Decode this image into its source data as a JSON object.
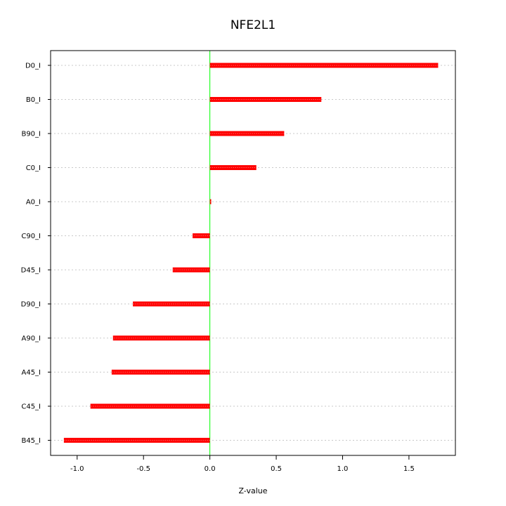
{
  "chart_data": {
    "type": "bar",
    "orientation": "horizontal",
    "title": "NFE2L1",
    "xlabel": "Z-value",
    "ylabel": "",
    "xlim": [
      -1.2,
      1.85
    ],
    "xticks": [
      -1.0,
      -0.5,
      0.0,
      0.5,
      1.0,
      1.5
    ],
    "xtick_labels": [
      "-1.0",
      "-0.5",
      "0.0",
      "0.5",
      "1.0",
      "1.5"
    ],
    "categories": [
      "D0_I",
      "B0_I",
      "B90_I",
      "C0_I",
      "A0_I",
      "C90_I",
      "D45_I",
      "D90_I",
      "A90_I",
      "A45_I",
      "C45_I",
      "B45_I"
    ],
    "values": [
      1.72,
      0.84,
      0.56,
      0.35,
      0.01,
      -0.13,
      -0.28,
      -0.58,
      -0.73,
      -0.74,
      -0.9,
      -1.1
    ],
    "grid": true,
    "bar_color": "#ff0000",
    "zero_line_color": "#00ff00"
  }
}
